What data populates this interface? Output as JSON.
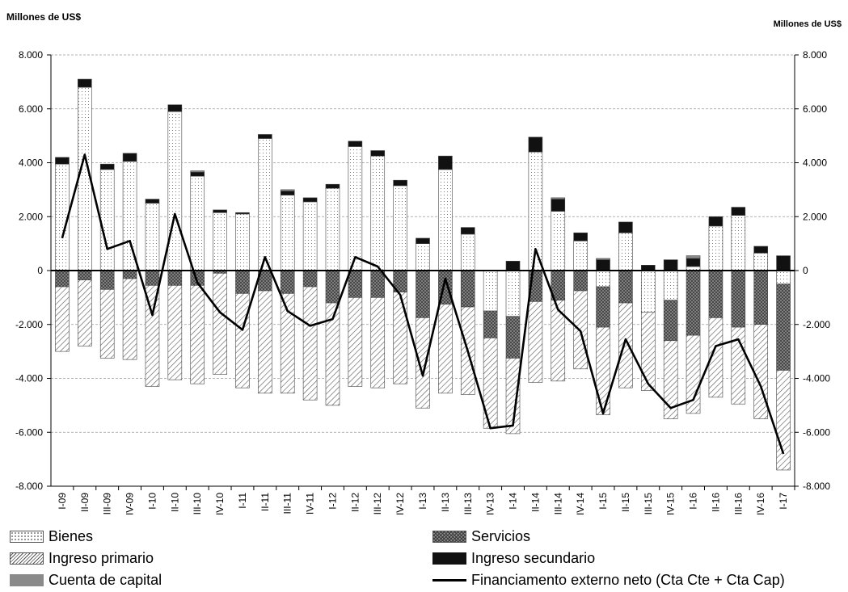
{
  "chart_data": {
    "type": "bar",
    "ylabel_left": "Millones de US$",
    "ylabel_right": "Millones de US$",
    "ylim": [
      -8000,
      8000
    ],
    "yticks": [
      "-8.000",
      "-6.000",
      "-4.000",
      "-2.000",
      "0",
      "2.000",
      "4.000",
      "6.000",
      "8.000"
    ],
    "grid": true,
    "legend_position": "bottom",
    "categories": [
      "I-09",
      "II-09",
      "III-09",
      "IV-09",
      "I-10",
      "II-10",
      "III-10",
      "IV-10",
      "I-11",
      "II-11",
      "III-11",
      "IV-11",
      "I-12",
      "II-12",
      "III-12",
      "IV-12",
      "I-13",
      "II-13",
      "III-13",
      "IV-13",
      "I-14",
      "II-14",
      "III-14",
      "IV-14",
      "I-15",
      "II-15",
      "III-15",
      "IV-15",
      "I-16",
      "II-16",
      "III-16",
      "IV-16",
      "I-17"
    ],
    "series": [
      {
        "name": "Bienes",
        "kind": "bar",
        "values": [
          3950,
          6800,
          3750,
          4050,
          2500,
          5900,
          3500,
          2150,
          2100,
          4900,
          2800,
          2550,
          3050,
          4600,
          4250,
          3150,
          1000,
          3750,
          1350,
          -1500,
          -1700,
          4400,
          2200,
          1100,
          -600,
          1400,
          -1550,
          -1100,
          150,
          1650,
          2050,
          650,
          -500
        ]
      },
      {
        "name": "Servicios",
        "kind": "bar",
        "values": [
          -600,
          -350,
          -700,
          -300,
          -550,
          -550,
          -550,
          -100,
          -850,
          -750,
          -850,
          -600,
          -1200,
          -1000,
          -1000,
          -800,
          -1750,
          -1250,
          -1350,
          -1000,
          -1550,
          -1150,
          -1100,
          -750,
          -1500,
          -1200,
          0,
          -1500,
          -2400,
          -1750,
          -2100,
          -2000,
          -3200
        ]
      },
      {
        "name": "Ingreso primario",
        "kind": "bar",
        "values": [
          -2400,
          -2450,
          -2550,
          -3000,
          -3750,
          -3500,
          -3650,
          -3750,
          -3500,
          -3800,
          -3700,
          -4200,
          -3800,
          -3300,
          -3350,
          -3400,
          -3350,
          -3300,
          -3250,
          -3350,
          -2800,
          -3000,
          -3000,
          -2900,
          -3250,
          -3150,
          -2900,
          -2900,
          -2900,
          -2950,
          -2850,
          -3500,
          -3700
        ]
      },
      {
        "name": "Ingreso secundario",
        "kind": "bar",
        "values": [
          250,
          300,
          200,
          300,
          150,
          250,
          150,
          100,
          50,
          150,
          150,
          150,
          150,
          200,
          200,
          200,
          200,
          500,
          250,
          0,
          350,
          550,
          450,
          300,
          400,
          400,
          200,
          400,
          300,
          350,
          300,
          250,
          550
        ]
      },
      {
        "name": "Cuenta de capital",
        "kind": "bar",
        "values": [
          0,
          0,
          0,
          0,
          0,
          0,
          50,
          0,
          0,
          0,
          50,
          0,
          0,
          0,
          0,
          0,
          0,
          0,
          0,
          0,
          0,
          0,
          50,
          0,
          50,
          0,
          0,
          0,
          100,
          0,
          0,
          0,
          0
        ]
      },
      {
        "name": "Financiamento externo neto (Cta Cte + Cta Cap)",
        "kind": "line",
        "values": [
          1200,
          4300,
          800,
          1100,
          -1650,
          2100,
          -450,
          -1550,
          -2200,
          500,
          -1500,
          -2050,
          -1800,
          500,
          150,
          -900,
          -3900,
          -300,
          -3000,
          -5850,
          -5750,
          800,
          -1450,
          -2250,
          -5300,
          -2550,
          -4200,
          -5100,
          -4800,
          -2800,
          -2550,
          -4300,
          -6800
        ]
      }
    ]
  },
  "legend": {
    "bienes": "Bienes",
    "servicios": "Servicios",
    "ingreso_primario": "Ingreso primario",
    "ingreso_secundario": "Ingreso secundario",
    "cuenta_capital": "Cuenta de capital",
    "financiamento": "Financiamento externo neto (Cta Cte + Cta Cap)"
  }
}
